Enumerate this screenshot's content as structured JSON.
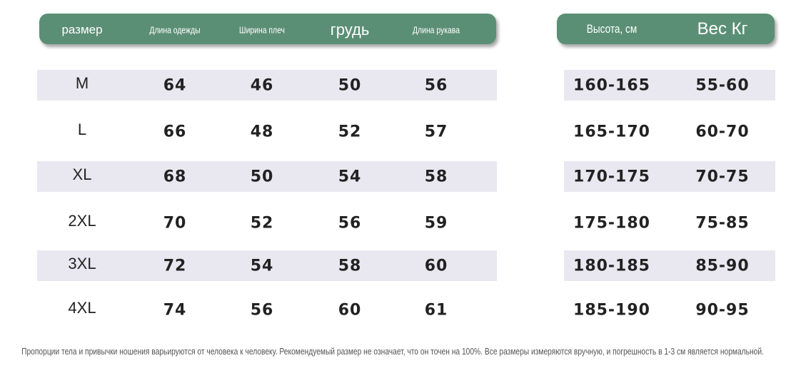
{
  "left_table": {
    "header": [
      "размер",
      "Длина одежды",
      "Ширина плеч",
      "грудь",
      "Длина рукава"
    ],
    "rows": [
      [
        "M",
        64,
        46,
        50,
        56
      ],
      [
        "L",
        66,
        48,
        52,
        57
      ],
      [
        "XL",
        68,
        50,
        54,
        58
      ],
      [
        "2XL",
        70,
        52,
        56,
        59
      ],
      [
        "3XL",
        72,
        54,
        58,
        60
      ],
      [
        "4XL",
        74,
        56,
        60,
        61
      ]
    ]
  },
  "right_table": {
    "header": [
      "Высота, см",
      "Вес Кг"
    ],
    "rows": [
      [
        "160-165",
        "55-60"
      ],
      [
        "165-170",
        "60-70"
      ],
      [
        "170-175",
        "70-75"
      ],
      [
        "175-180",
        "75-85"
      ],
      [
        "180-185",
        "85-90"
      ],
      [
        "185-190",
        "90-95"
      ]
    ]
  },
  "note": "Пропорции тела и привычки ношения варьируются от человека к человеку. Рекомендуемый размер не означает, что он точен на 100%. Все размеры измеряются вручную, и погрешность в 1-3 см является нормальной."
}
